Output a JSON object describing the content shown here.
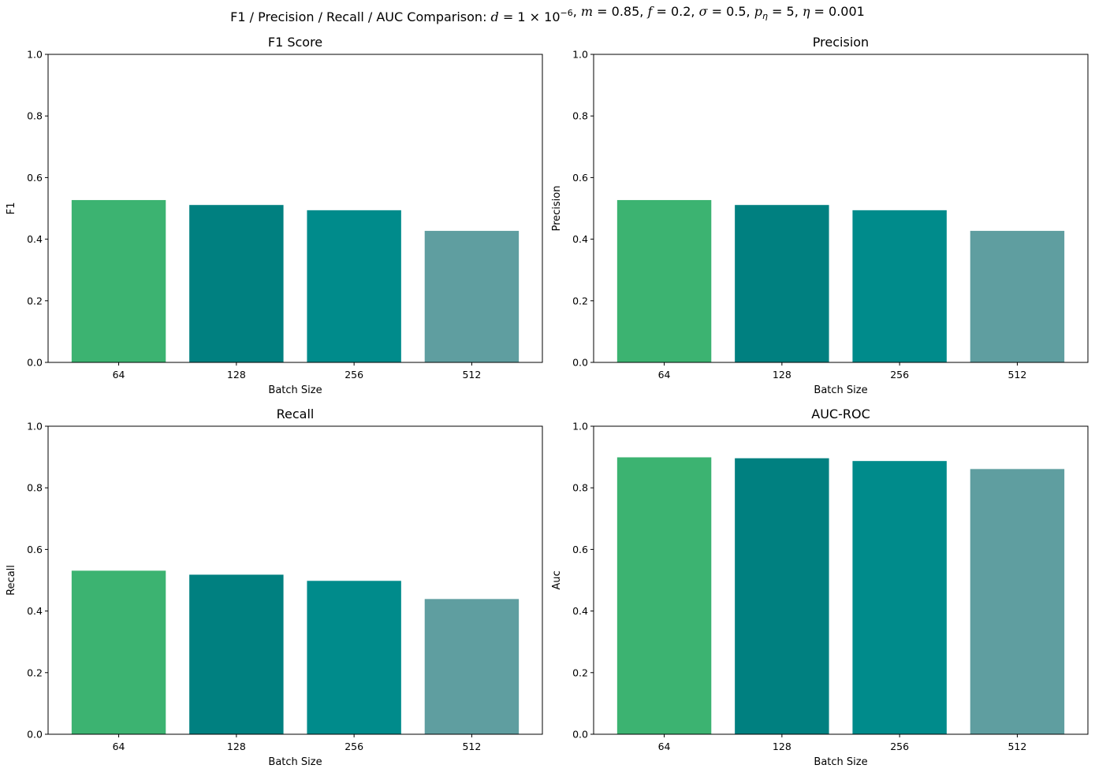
{
  "figure": {
    "title_prefix": "F1 / Precision / Recall / AUC Comparison: ",
    "title_params": [
      {
        "sym": "d",
        "val": " = 1 × 10",
        "sup": "−6"
      },
      {
        "sym": "m",
        "val": " = 0.85"
      },
      {
        "sym": "f",
        "val": " = 0.2"
      },
      {
        "sym": "σ",
        "val": " = 0.5"
      },
      {
        "sym": "p",
        "sub": "η",
        "val": " = 5"
      },
      {
        "sym": "η",
        "val": " = 0.001"
      }
    ]
  },
  "colors": [
    "#3cb371",
    "#008080",
    "#008b8b",
    "#5f9ea0"
  ],
  "chart_data": [
    {
      "type": "bar",
      "title": "F1 Score",
      "xlabel": "Batch Size",
      "ylabel": "F1",
      "categories": [
        "64",
        "128",
        "256",
        "512"
      ],
      "values": [
        0.527,
        0.511,
        0.494,
        0.427
      ],
      "ylim": [
        0,
        1
      ],
      "yticks": [
        "0.0",
        "0.2",
        "0.4",
        "0.6",
        "0.8",
        "1.0"
      ],
      "grid": false
    },
    {
      "type": "bar",
      "title": "Precision",
      "xlabel": "Batch Size",
      "ylabel": "Precision",
      "categories": [
        "64",
        "128",
        "256",
        "512"
      ],
      "values": [
        0.527,
        0.511,
        0.494,
        0.427
      ],
      "ylim": [
        0,
        1
      ],
      "yticks": [
        "0.0",
        "0.2",
        "0.4",
        "0.6",
        "0.8",
        "1.0"
      ],
      "grid": false
    },
    {
      "type": "bar",
      "title": "Recall",
      "xlabel": "Batch Size",
      "ylabel": "Recall",
      "categories": [
        "64",
        "128",
        "256",
        "512"
      ],
      "values": [
        0.531,
        0.518,
        0.498,
        0.439
      ],
      "ylim": [
        0,
        1
      ],
      "yticks": [
        "0.0",
        "0.2",
        "0.4",
        "0.6",
        "0.8",
        "1.0"
      ],
      "grid": false
    },
    {
      "type": "bar",
      "title": "AUC-ROC",
      "xlabel": "Batch Size",
      "ylabel": "Auc",
      "categories": [
        "64",
        "128",
        "256",
        "512"
      ],
      "values": [
        0.899,
        0.896,
        0.887,
        0.861
      ],
      "ylim": [
        0,
        1
      ],
      "yticks": [
        "0.0",
        "0.2",
        "0.4",
        "0.6",
        "0.8",
        "1.0"
      ],
      "grid": false
    }
  ]
}
